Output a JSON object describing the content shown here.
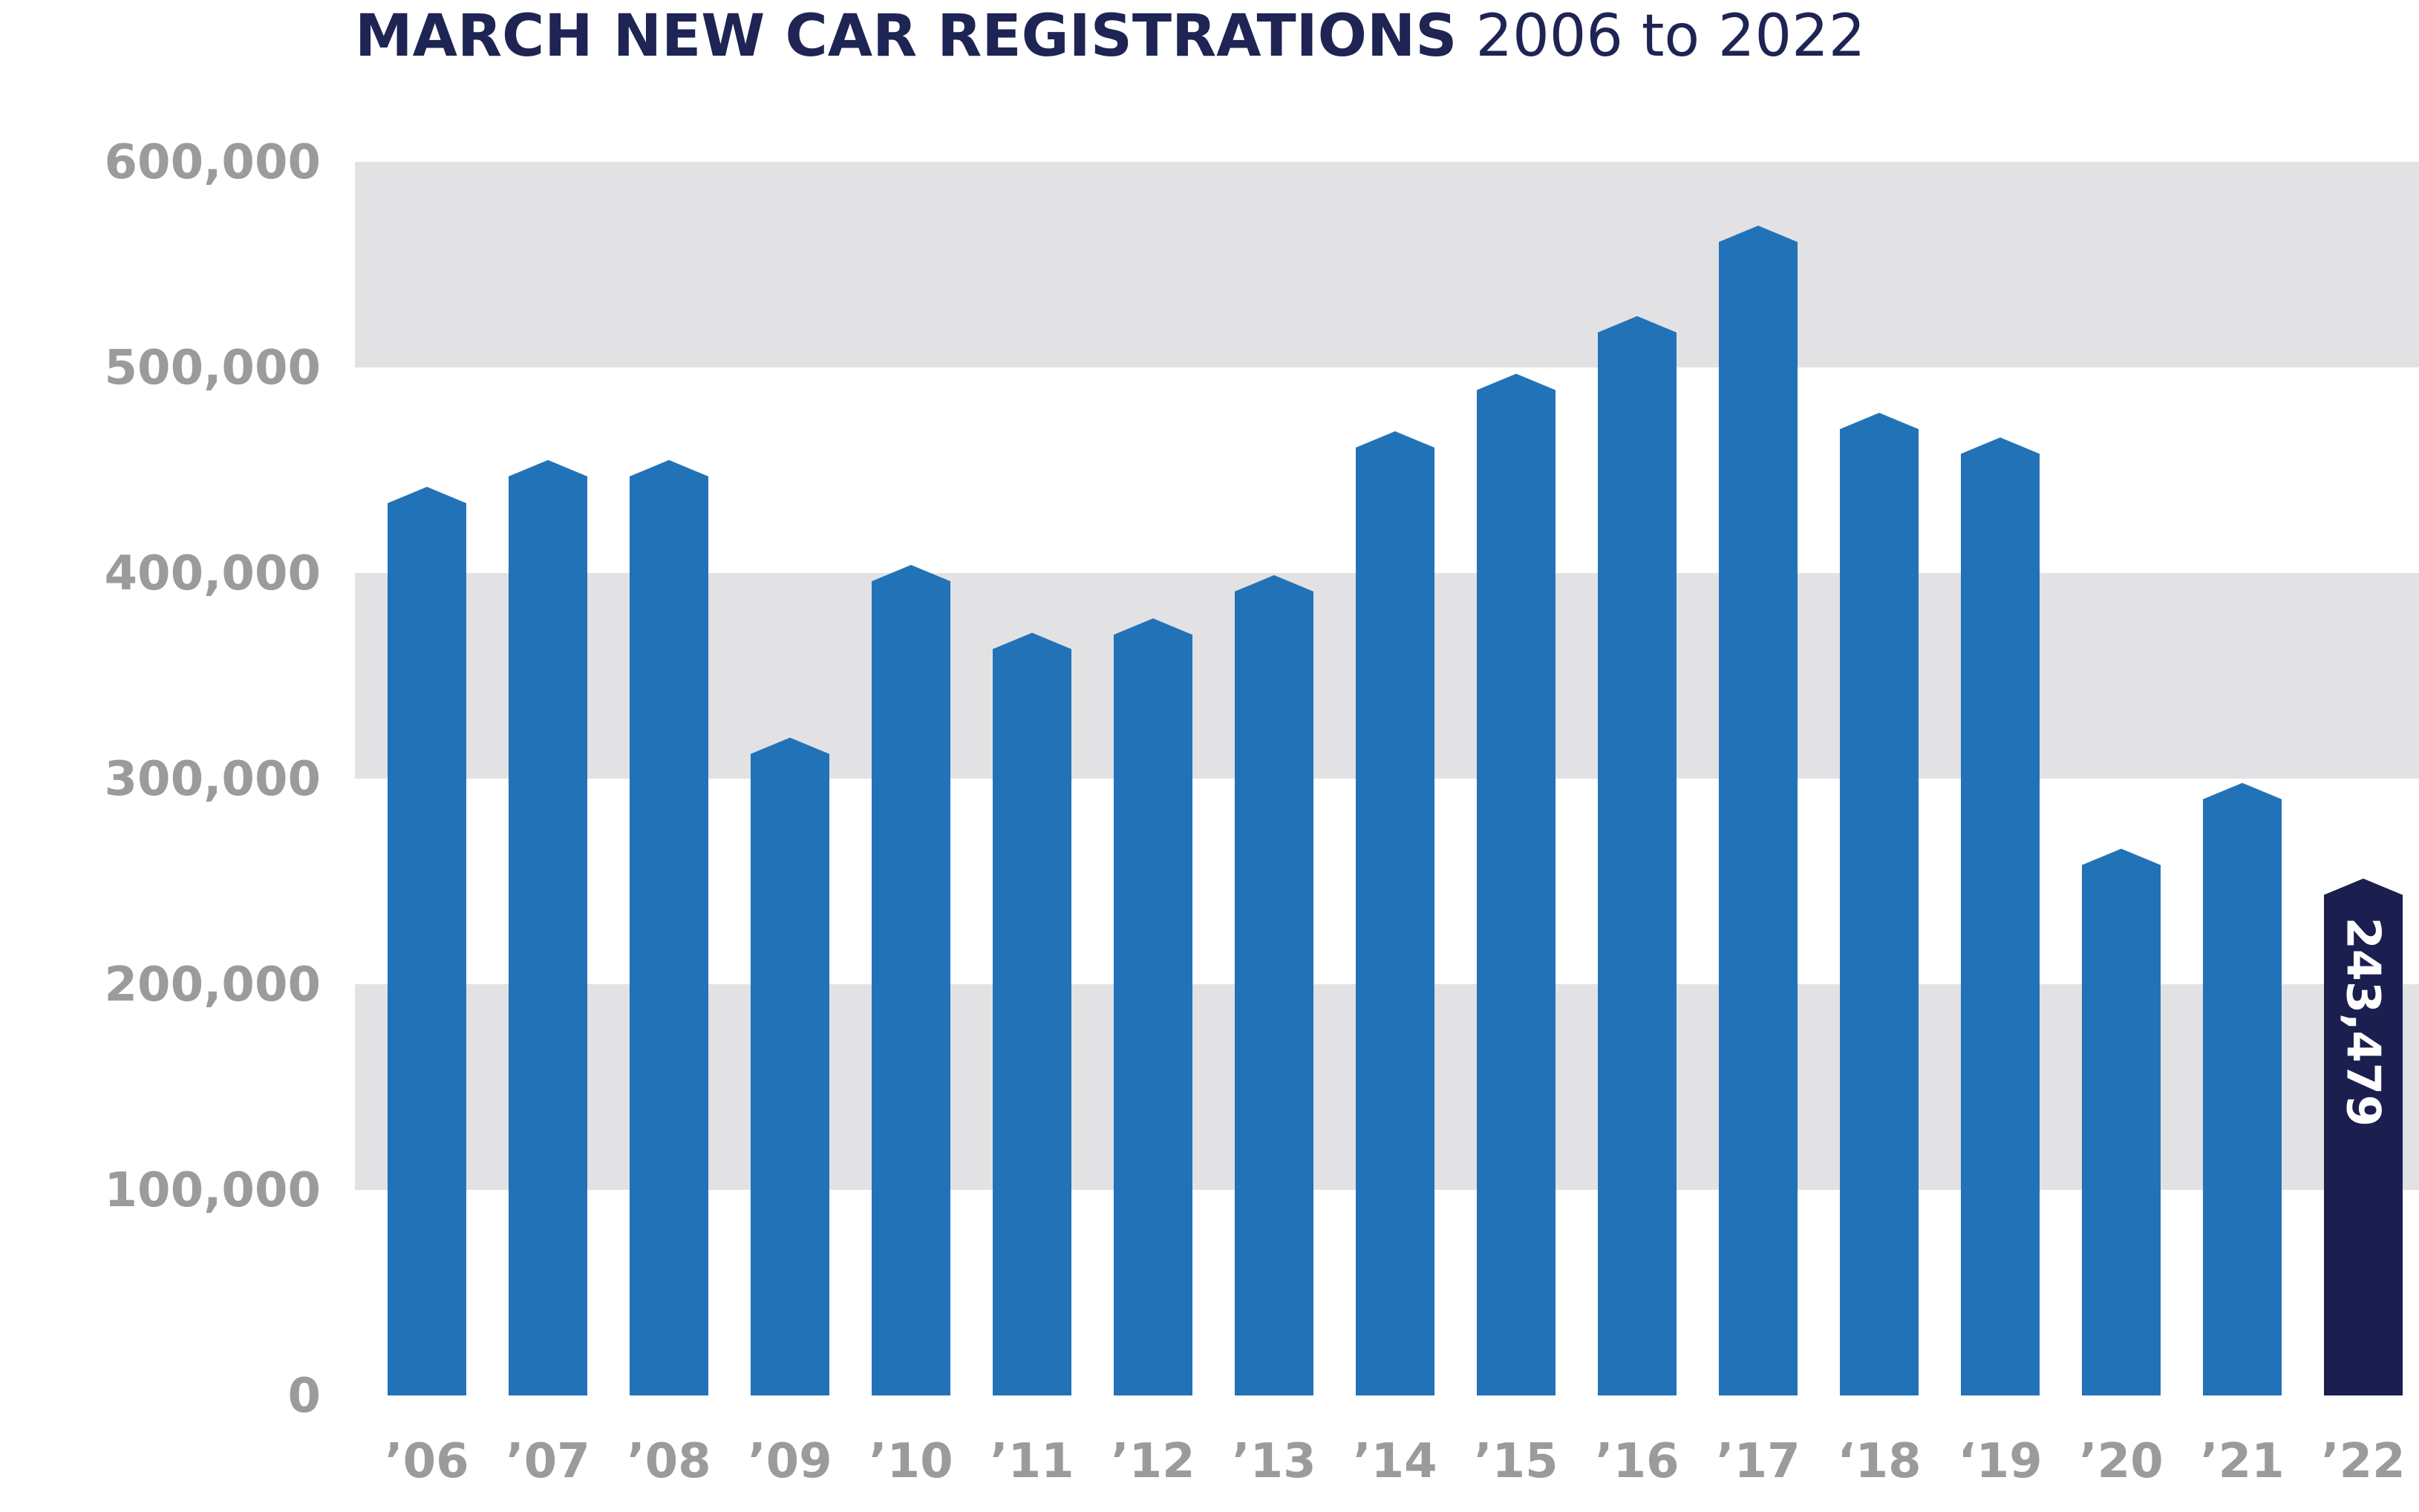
{
  "colors": {
    "bar": "#2272b8",
    "highlight_bar": "#1b1f4f",
    "band": "#e2e1e3",
    "tick_text": "#9b9b9b",
    "title_text": "#1e2453",
    "label_text": "#ffffff"
  },
  "chart_data": {
    "type": "bar",
    "title": {
      "bold": "MARCH NEW CAR REGISTRATIONS",
      "light": "2006 to 2022"
    },
    "xlabel": "",
    "ylabel": "",
    "ylim": [
      0,
      600000
    ],
    "yticks": [
      {
        "value": 0,
        "label": "0"
      },
      {
        "value": 100000,
        "label": "100,000"
      },
      {
        "value": 200000,
        "label": "200,000"
      },
      {
        "value": 300000,
        "label": "300,000"
      },
      {
        "value": 400000,
        "label": "400,000"
      },
      {
        "value": 500000,
        "label": "500,000"
      },
      {
        "value": 600000,
        "label": "600,000"
      }
    ],
    "bands": [
      [
        100000,
        200000
      ],
      [
        300000,
        400000
      ],
      [
        500000,
        600000
      ]
    ],
    "categories": [
      "’06",
      "’07",
      "’08",
      "’09",
      "’10",
      "’11",
      "’12",
      "’13",
      "’14",
      "’15",
      "’16",
      "’17",
      "‘18",
      "‘19",
      "’20",
      "’21",
      "’22"
    ],
    "values": [
      434000,
      447000,
      447000,
      312000,
      396000,
      363000,
      370000,
      391000,
      461000,
      489000,
      517000,
      561000,
      470000,
      458000,
      258000,
      290000,
      243479
    ],
    "highlight_index": 16,
    "data_label": "243,479"
  }
}
